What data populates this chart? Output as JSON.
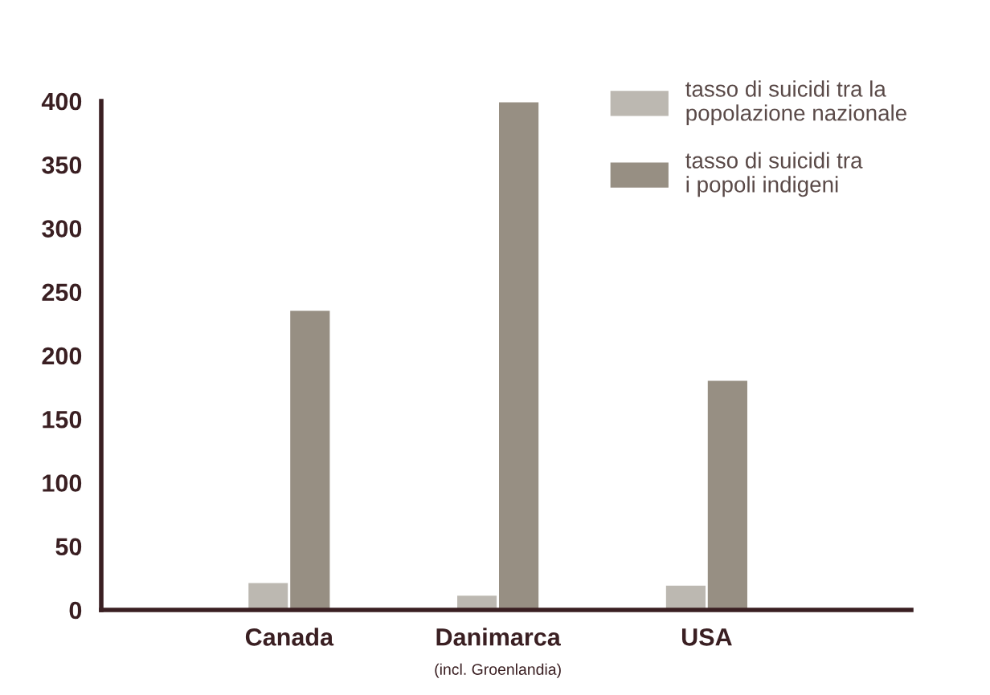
{
  "chart_data": {
    "type": "bar",
    "categories": [
      "Canada",
      "Danimarca",
      "USA"
    ],
    "series": [
      {
        "name": "tasso di suicidi tra la\npopolazione nazionale",
        "color": "#bcb8b1",
        "values": [
          22,
          12,
          20
        ]
      },
      {
        "name": "tasso di suicidi tra\ni popoli indigeni",
        "color": "#978f83",
        "values": [
          236,
          400,
          181
        ]
      }
    ],
    "ylim": [
      0,
      400
    ],
    "yticks": [
      0,
      50,
      100,
      150,
      200,
      250,
      300,
      350,
      400
    ],
    "grid": false,
    "legend": "top right",
    "annotations": [
      "(incl. Groenlandia)"
    ]
  }
}
